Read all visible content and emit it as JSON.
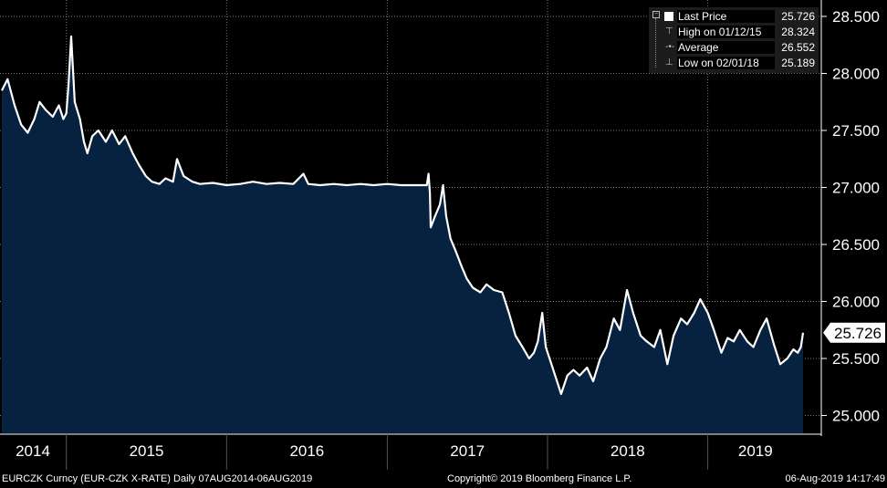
{
  "legend": {
    "last_label": "Last Price",
    "last_value": "25.726",
    "high_label": "High on 01/12/15",
    "high_value": "28.324",
    "avg_label": "Average",
    "avg_value": "26.552",
    "low_label": "Low on 02/01/18",
    "low_value": "25.189"
  },
  "last_price_tag": "25.726",
  "footer": {
    "ticker": "EURCZK Curncy (EUR-CZK X-RATE)  Daily 07AUG2014-06AUG2019",
    "copyright": "Copyright© 2019 Bloomberg Finance L.P.",
    "timestamp": "06-Aug-2019 14:17:49"
  },
  "colors": {
    "background": "#000000",
    "area_fill": "#062240",
    "line": "#ffffff",
    "legend_bg": "#1c1c1c"
  },
  "chart_data": {
    "type": "area",
    "grid": true,
    "y_axis_side": "right",
    "ylim": [
      24.88,
      28.58
    ],
    "xlim": [
      "2014-08-07",
      "2019-08-06"
    ],
    "y_ticks": [
      {
        "value": 28.5,
        "label": "28.500"
      },
      {
        "value": 28.0,
        "label": "28.000"
      },
      {
        "value": 27.5,
        "label": "27.500"
      },
      {
        "value": 27.0,
        "label": "27.000"
      },
      {
        "value": 26.5,
        "label": "26.500"
      },
      {
        "value": 26.0,
        "label": "26.000"
      },
      {
        "value": 25.5,
        "label": "25.500"
      },
      {
        "value": 25.0,
        "label": "25.000"
      }
    ],
    "x_labels": [
      {
        "label": "2014",
        "start": "2014-08-07",
        "end": "2015-01-01"
      },
      {
        "label": "2015",
        "start": "2015-01-01",
        "end": "2016-01-01"
      },
      {
        "label": "2016",
        "start": "2016-01-01",
        "end": "2017-01-01"
      },
      {
        "label": "2017",
        "start": "2017-01-01",
        "end": "2018-01-01"
      },
      {
        "label": "2018",
        "start": "2018-01-01",
        "end": "2019-01-01"
      },
      {
        "label": "2019",
        "start": "2019-01-01",
        "end": "2019-08-06"
      }
    ],
    "series": [
      {
        "points": [
          [
            "2014-08-07",
            27.85
          ],
          [
            "2014-08-20",
            27.95
          ],
          [
            "2014-09-05",
            27.72
          ],
          [
            "2014-09-20",
            27.55
          ],
          [
            "2014-10-05",
            27.48
          ],
          [
            "2014-10-20",
            27.6
          ],
          [
            "2014-11-01",
            27.75
          ],
          [
            "2014-11-15",
            27.68
          ],
          [
            "2014-12-01",
            27.62
          ],
          [
            "2014-12-15",
            27.72
          ],
          [
            "2014-12-25",
            27.6
          ],
          [
            "2015-01-01",
            27.65
          ],
          [
            "2015-01-06",
            27.9
          ],
          [
            "2015-01-12",
            28.324
          ],
          [
            "2015-01-20",
            27.75
          ],
          [
            "2015-02-01",
            27.6
          ],
          [
            "2015-02-10",
            27.4
          ],
          [
            "2015-02-18",
            27.3
          ],
          [
            "2015-03-01",
            27.45
          ],
          [
            "2015-03-15",
            27.5
          ],
          [
            "2015-04-01",
            27.4
          ],
          [
            "2015-04-15",
            27.5
          ],
          [
            "2015-05-01",
            27.38
          ],
          [
            "2015-05-15",
            27.45
          ],
          [
            "2015-06-01",
            27.3
          ],
          [
            "2015-06-15",
            27.2
          ],
          [
            "2015-07-01",
            27.1
          ],
          [
            "2015-07-15",
            27.05
          ],
          [
            "2015-08-01",
            27.03
          ],
          [
            "2015-08-15",
            27.08
          ],
          [
            "2015-09-01",
            27.05
          ],
          [
            "2015-09-10",
            27.25
          ],
          [
            "2015-09-25",
            27.1
          ],
          [
            "2015-10-15",
            27.05
          ],
          [
            "2015-11-01",
            27.03
          ],
          [
            "2015-12-01",
            27.04
          ],
          [
            "2016-01-01",
            27.02
          ],
          [
            "2016-02-01",
            27.03
          ],
          [
            "2016-03-01",
            27.05
          ],
          [
            "2016-04-01",
            27.03
          ],
          [
            "2016-05-01",
            27.04
          ],
          [
            "2016-06-01",
            27.03
          ],
          [
            "2016-06-24",
            27.12
          ],
          [
            "2016-07-05",
            27.03
          ],
          [
            "2016-08-01",
            27.02
          ],
          [
            "2016-09-01",
            27.03
          ],
          [
            "2016-10-01",
            27.02
          ],
          [
            "2016-11-01",
            27.03
          ],
          [
            "2016-12-01",
            27.02
          ],
          [
            "2017-01-01",
            27.03
          ],
          [
            "2017-02-01",
            27.02
          ],
          [
            "2017-03-01",
            27.02
          ],
          [
            "2017-04-01",
            27.02
          ],
          [
            "2017-04-05",
            27.12
          ],
          [
            "2017-04-08",
            26.95
          ],
          [
            "2017-04-10",
            26.65
          ],
          [
            "2017-04-20",
            26.75
          ],
          [
            "2017-05-01",
            26.85
          ],
          [
            "2017-05-08",
            27.02
          ],
          [
            "2017-05-15",
            26.75
          ],
          [
            "2017-05-25",
            26.55
          ],
          [
            "2017-06-05",
            26.45
          ],
          [
            "2017-06-20",
            26.3
          ],
          [
            "2017-07-01",
            26.2
          ],
          [
            "2017-07-15",
            26.12
          ],
          [
            "2017-08-01",
            26.08
          ],
          [
            "2017-08-15",
            26.15
          ],
          [
            "2017-09-01",
            26.1
          ],
          [
            "2017-09-20",
            26.08
          ],
          [
            "2017-10-05",
            25.9
          ],
          [
            "2017-10-20",
            25.7
          ],
          [
            "2017-11-05",
            25.6
          ],
          [
            "2017-11-20",
            25.5
          ],
          [
            "2017-12-01",
            25.55
          ],
          [
            "2017-12-10",
            25.65
          ],
          [
            "2017-12-20",
            25.9
          ],
          [
            "2017-12-28",
            25.6
          ],
          [
            "2018-01-10",
            25.45
          ],
          [
            "2018-02-01",
            25.189
          ],
          [
            "2018-02-15",
            25.35
          ],
          [
            "2018-03-01",
            25.4
          ],
          [
            "2018-03-15",
            25.35
          ],
          [
            "2018-04-01",
            25.42
          ],
          [
            "2018-04-15",
            25.3
          ],
          [
            "2018-05-01",
            25.5
          ],
          [
            "2018-05-15",
            25.6
          ],
          [
            "2018-06-01",
            25.85
          ],
          [
            "2018-06-15",
            25.75
          ],
          [
            "2018-07-01",
            26.1
          ],
          [
            "2018-07-15",
            25.9
          ],
          [
            "2018-08-01",
            25.7
          ],
          [
            "2018-08-15",
            25.65
          ],
          [
            "2018-09-01",
            25.6
          ],
          [
            "2018-09-15",
            25.75
          ],
          [
            "2018-10-01",
            25.45
          ],
          [
            "2018-10-15",
            25.7
          ],
          [
            "2018-11-01",
            25.85
          ],
          [
            "2018-11-15",
            25.8
          ],
          [
            "2018-12-01",
            25.9
          ],
          [
            "2018-12-15",
            26.02
          ],
          [
            "2019-01-01",
            25.9
          ],
          [
            "2019-01-15",
            25.75
          ],
          [
            "2019-02-01",
            25.55
          ],
          [
            "2019-02-15",
            25.68
          ],
          [
            "2019-03-01",
            25.65
          ],
          [
            "2019-03-15",
            25.75
          ],
          [
            "2019-04-01",
            25.65
          ],
          [
            "2019-04-15",
            25.6
          ],
          [
            "2019-05-01",
            25.75
          ],
          [
            "2019-05-15",
            25.85
          ],
          [
            "2019-06-01",
            25.62
          ],
          [
            "2019-06-15",
            25.45
          ],
          [
            "2019-07-01",
            25.5
          ],
          [
            "2019-07-15",
            25.58
          ],
          [
            "2019-07-25",
            25.55
          ],
          [
            "2019-08-01",
            25.6
          ],
          [
            "2019-08-06",
            25.726
          ]
        ]
      }
    ]
  }
}
